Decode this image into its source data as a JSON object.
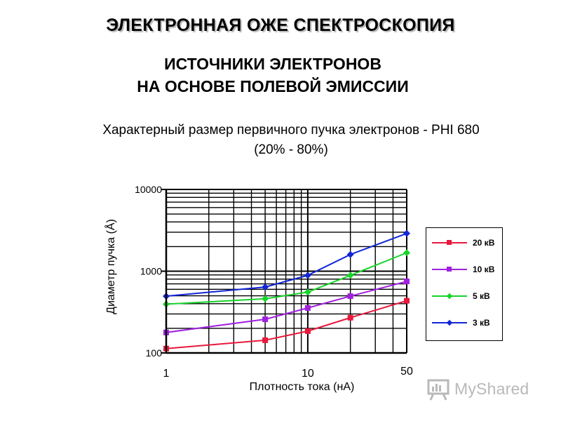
{
  "header": {
    "title": "ЭЛЕКТРОННАЯ ОЖЕ СПЕКТРОСКОПИЯ",
    "subtitle_line1": "ИСТОЧНИКИ ЭЛЕКТРОНОВ",
    "subtitle_line2": "НА ОСНОВЕ ПОЛЕВОЙ ЭМИССИИ",
    "caption_line1": "Характерный размер первичного пучка электронов - PHI 680",
    "caption_line2": "(20% - 80%)"
  },
  "chart_data": {
    "type": "line",
    "xlabel": "Плотность тока (нА)",
    "ylabel": "Диаметр пучка (Å)",
    "xscale": "log",
    "yscale": "log",
    "xlim": [
      1,
      50
    ],
    "ylim": [
      100,
      10000
    ],
    "xticks": [
      "1",
      "10",
      "50"
    ],
    "yticks": [
      "100",
      "1000",
      "10000"
    ],
    "grid": true,
    "legend_position": "right",
    "series": [
      {
        "name": "20 кВ",
        "color": "#e8193c",
        "marker": "square",
        "x": [
          1,
          5,
          10,
          20,
          50
        ],
        "y": [
          113,
          143,
          185,
          270,
          435
        ]
      },
      {
        "name": "10 кВ",
        "color": "#a020e0",
        "marker": "square",
        "x": [
          1,
          5,
          10,
          20,
          50
        ],
        "y": [
          178,
          258,
          355,
          495,
          750
        ]
      },
      {
        "name": "5 кВ",
        "color": "#17d42a",
        "marker": "diamond",
        "x": [
          1,
          5,
          10,
          20,
          50
        ],
        "y": [
          395,
          460,
          555,
          890,
          1680
        ]
      },
      {
        "name": "3 кВ",
        "color": "#1226d6",
        "marker": "diamond",
        "x": [
          1,
          5,
          10,
          20,
          50
        ],
        "y": [
          495,
          640,
          890,
          1600,
          2900
        ]
      }
    ]
  },
  "watermark": {
    "text": "MyShared",
    "icon": "presentation-board-icon"
  }
}
